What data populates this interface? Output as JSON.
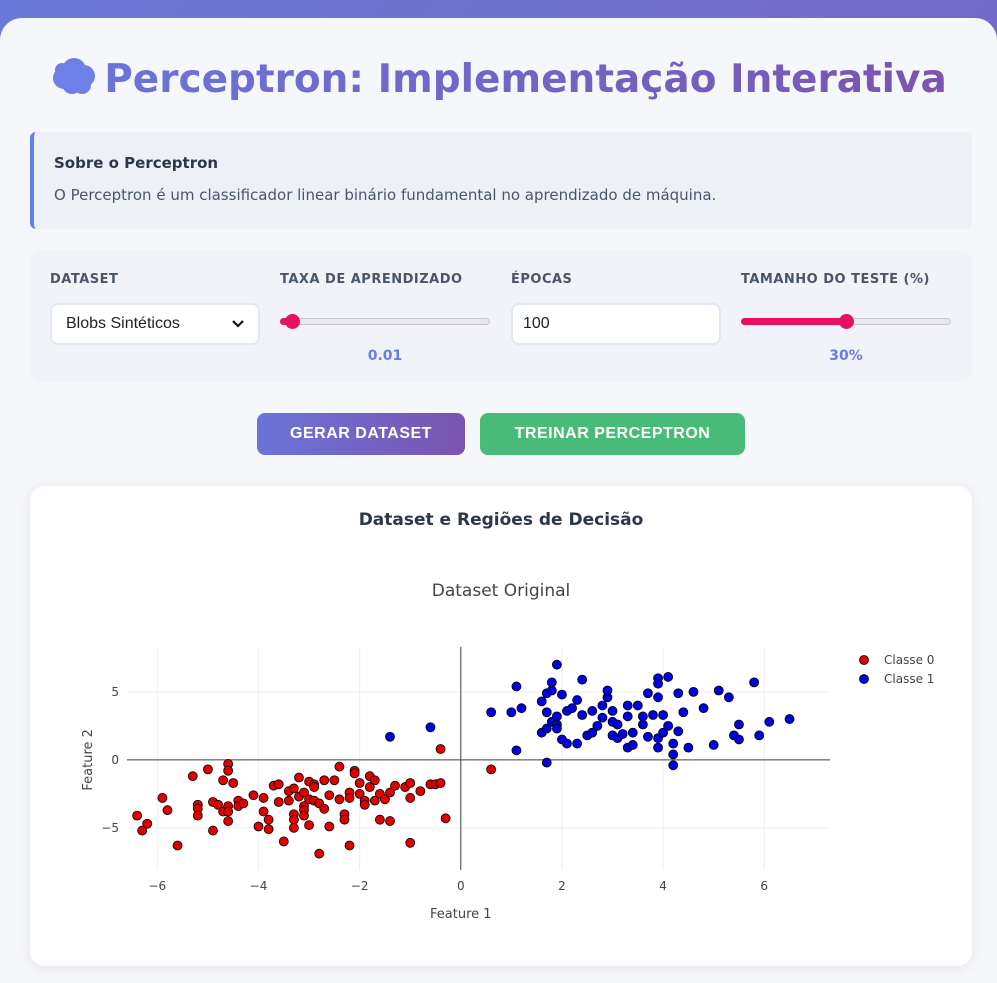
{
  "header": {
    "title": "Perceptron: Implementação Interativa",
    "icon": "brain-icon"
  },
  "info": {
    "heading": "Sobre o Perceptron",
    "text": "O Perceptron é um classificador linear binário fundamental no aprendizado de máquina."
  },
  "controls": {
    "dataset": {
      "label": "DATASET",
      "value": "Blobs Sintéticos"
    },
    "learning_rate": {
      "label": "TAXA DE APRENDIZADO",
      "value": "0.01",
      "fraction": 0.02
    },
    "epochs": {
      "label": "ÉPOCAS",
      "value": "100"
    },
    "test_size": {
      "label": "TAMANHO DO TESTE (%)",
      "value": "30%",
      "fraction": 0.5
    }
  },
  "buttons": {
    "generate": "GERAR DATASET",
    "train": "TREINAR PERCEPTRON"
  },
  "plot_section": {
    "heading": "Dataset e Regiões de Decisão"
  },
  "chart_data": {
    "type": "scatter",
    "title": "Dataset Original",
    "xlabel": "Feature 1",
    "ylabel": "Feature 2",
    "xlim": [
      -6.6,
      7.3
    ],
    "ylim": [
      -8.1,
      8.3
    ],
    "xticks": [
      -6,
      -4,
      -2,
      0,
      2,
      4,
      6
    ],
    "xtick_labels": [
      "−6",
      "−4",
      "−2",
      "0",
      "2",
      "4",
      "6"
    ],
    "yticks": [
      -5,
      0,
      5
    ],
    "ytick_labels": [
      "−5",
      "0",
      "5"
    ],
    "grid": true,
    "legend": "top-right",
    "series": [
      {
        "name": "Classe 0",
        "color": "#e00000",
        "points": [
          [
            -6.4,
            -4.1
          ],
          [
            -6.3,
            -5.2
          ],
          [
            -6.2,
            -4.7
          ],
          [
            -5.9,
            -2.8
          ],
          [
            -5.8,
            -3.7
          ],
          [
            -5.6,
            -6.3
          ],
          [
            -5.3,
            -1.2
          ],
          [
            -5.2,
            -3.3
          ],
          [
            -5.2,
            -3.6
          ],
          [
            -5.2,
            -4.1
          ],
          [
            -5.0,
            -0.7
          ],
          [
            -4.9,
            -3.1
          ],
          [
            -4.9,
            -5.2
          ],
          [
            -4.8,
            -3.3
          ],
          [
            -4.7,
            -3.8
          ],
          [
            -4.7,
            -1.5
          ],
          [
            -4.6,
            -0.3
          ],
          [
            -4.6,
            -0.8
          ],
          [
            -4.6,
            -3.4
          ],
          [
            -4.6,
            -3.8
          ],
          [
            -4.6,
            -4.5
          ],
          [
            -4.5,
            -1.7
          ],
          [
            -4.4,
            -3.0
          ],
          [
            -4.4,
            -3.4
          ],
          [
            -4.3,
            -3.2
          ],
          [
            -4.1,
            -2.6
          ],
          [
            -4.0,
            -4.9
          ],
          [
            -3.9,
            -2.8
          ],
          [
            -3.9,
            -3.8
          ],
          [
            -3.8,
            -4.4
          ],
          [
            -3.8,
            -5.1
          ],
          [
            -3.7,
            -1.9
          ],
          [
            -3.6,
            -1.8
          ],
          [
            -3.6,
            -3.1
          ],
          [
            -3.5,
            -6.0
          ],
          [
            -3.4,
            -2.3
          ],
          [
            -3.4,
            -3.0
          ],
          [
            -3.3,
            -2.1
          ],
          [
            -3.3,
            -4.0
          ],
          [
            -3.3,
            -4.4
          ],
          [
            -3.3,
            -5.0
          ],
          [
            -3.2,
            -1.3
          ],
          [
            -3.2,
            -2.7
          ],
          [
            -3.1,
            -2.4
          ],
          [
            -3.1,
            -3.4
          ],
          [
            -3.1,
            -3.7
          ],
          [
            -3.1,
            -4.1
          ],
          [
            -3.0,
            -1.6
          ],
          [
            -3.0,
            -2.9
          ],
          [
            -3.0,
            -4.8
          ],
          [
            -2.9,
            -1.8
          ],
          [
            -2.9,
            -2.0
          ],
          [
            -2.9,
            -3.0
          ],
          [
            -2.8,
            -3.2
          ],
          [
            -2.8,
            -6.9
          ],
          [
            -2.7,
            -1.5
          ],
          [
            -2.7,
            -3.6
          ],
          [
            -2.6,
            -2.6
          ],
          [
            -2.6,
            -4.9
          ],
          [
            -2.5,
            -1.5
          ],
          [
            -2.4,
            -0.5
          ],
          [
            -2.4,
            -2.9
          ],
          [
            -2.3,
            -4.0
          ],
          [
            -2.3,
            -4.4
          ],
          [
            -2.2,
            -2.4
          ],
          [
            -2.2,
            -2.8
          ],
          [
            -2.2,
            -6.3
          ],
          [
            -2.1,
            -0.8
          ],
          [
            -2.1,
            -1.0
          ],
          [
            -2.0,
            -1.7
          ],
          [
            -2.0,
            -2.5
          ],
          [
            -1.9,
            -3.0
          ],
          [
            -1.9,
            -3.3
          ],
          [
            -1.8,
            -1.2
          ],
          [
            -1.8,
            -2.0
          ],
          [
            -1.7,
            -1.5
          ],
          [
            -1.7,
            -3.0
          ],
          [
            -1.6,
            -2.5
          ],
          [
            -1.6,
            -4.4
          ],
          [
            -1.5,
            -2.9
          ],
          [
            -1.4,
            -2.4
          ],
          [
            -1.4,
            -4.5
          ],
          [
            -1.3,
            -1.9
          ],
          [
            -1.1,
            -2.0
          ],
          [
            -1.0,
            -1.7
          ],
          [
            -1.0,
            -2.8
          ],
          [
            -1.0,
            -6.1
          ],
          [
            -0.8,
            -2.3
          ],
          [
            -0.6,
            -1.8
          ],
          [
            -0.5,
            -1.8
          ],
          [
            -0.4,
            -1.7
          ],
          [
            -0.3,
            -4.3
          ],
          [
            -0.4,
            0.8
          ],
          [
            0.6,
            -0.7
          ]
        ]
      },
      {
        "name": "Classe 1",
        "color": "#0000e0",
        "points": [
          [
            -1.4,
            1.7
          ],
          [
            -0.6,
            2.4
          ],
          [
            0.6,
            3.5
          ],
          [
            1.0,
            3.5
          ],
          [
            1.1,
            5.4
          ],
          [
            1.1,
            0.7
          ],
          [
            1.2,
            3.8
          ],
          [
            1.6,
            4.3
          ],
          [
            1.6,
            2.0
          ],
          [
            1.7,
            3.5
          ],
          [
            1.7,
            4.9
          ],
          [
            1.7,
            2.3
          ],
          [
            1.7,
            -0.2
          ],
          [
            1.8,
            2.8
          ],
          [
            1.8,
            5.1
          ],
          [
            1.8,
            5.7
          ],
          [
            1.9,
            7.0
          ],
          [
            1.9,
            2.6
          ],
          [
            1.9,
            2.3
          ],
          [
            1.9,
            3.2
          ],
          [
            2.0,
            4.8
          ],
          [
            2.0,
            1.5
          ],
          [
            2.1,
            3.6
          ],
          [
            2.1,
            1.2
          ],
          [
            2.2,
            3.8
          ],
          [
            2.3,
            4.4
          ],
          [
            2.3,
            1.2
          ],
          [
            2.4,
            5.9
          ],
          [
            2.4,
            3.3
          ],
          [
            2.5,
            1.8
          ],
          [
            2.6,
            2.0
          ],
          [
            2.6,
            3.6
          ],
          [
            2.7,
            2.5
          ],
          [
            2.8,
            3.1
          ],
          [
            2.8,
            4.0
          ],
          [
            2.9,
            4.6
          ],
          [
            2.9,
            5.1
          ],
          [
            3.0,
            1.8
          ],
          [
            3.0,
            3.6
          ],
          [
            3.0,
            2.8
          ],
          [
            3.1,
            2.6
          ],
          [
            3.1,
            1.6
          ],
          [
            3.2,
            1.9
          ],
          [
            3.3,
            4.0
          ],
          [
            3.3,
            0.9
          ],
          [
            3.3,
            3.2
          ],
          [
            3.4,
            2.0
          ],
          [
            3.4,
            1.1
          ],
          [
            3.5,
            4.0
          ],
          [
            3.6,
            3.2
          ],
          [
            3.6,
            2.6
          ],
          [
            3.7,
            4.9
          ],
          [
            3.7,
            1.7
          ],
          [
            3.8,
            3.3
          ],
          [
            3.9,
            4.6
          ],
          [
            3.9,
            6.0
          ],
          [
            3.9,
            5.6
          ],
          [
            3.9,
            1.6
          ],
          [
            3.9,
            0.9
          ],
          [
            4.0,
            3.3
          ],
          [
            4.0,
            2.0
          ],
          [
            4.1,
            6.1
          ],
          [
            4.1,
            2.5
          ],
          [
            4.2,
            0.4
          ],
          [
            4.2,
            -0.4
          ],
          [
            4.2,
            1.2
          ],
          [
            4.3,
            4.9
          ],
          [
            4.3,
            2.1
          ],
          [
            4.4,
            3.5
          ],
          [
            4.5,
            0.9
          ],
          [
            4.6,
            5.0
          ],
          [
            4.8,
            3.8
          ],
          [
            5.0,
            1.1
          ],
          [
            5.1,
            5.1
          ],
          [
            5.3,
            4.6
          ],
          [
            5.4,
            1.8
          ],
          [
            5.5,
            2.6
          ],
          [
            5.5,
            1.5
          ],
          [
            5.8,
            5.7
          ],
          [
            5.9,
            1.8
          ],
          [
            6.1,
            2.8
          ],
          [
            6.5,
            3.0
          ]
        ]
      }
    ]
  }
}
